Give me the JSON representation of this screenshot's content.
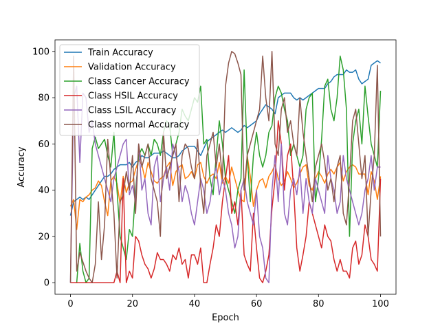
{
  "chart_data": {
    "type": "line",
    "title": "",
    "xlabel": "Epoch",
    "ylabel": "Accuracy",
    "xlim": [
      -5,
      105
    ],
    "ylim": [
      -5,
      105
    ],
    "xticks": [
      0,
      20,
      40,
      60,
      80,
      100
    ],
    "yticks": [
      0,
      20,
      40,
      60,
      80,
      100
    ],
    "grid": false,
    "legend_position": "upper-left",
    "x": [
      0,
      1,
      2,
      3,
      4,
      5,
      6,
      7,
      8,
      9,
      10,
      11,
      12,
      13,
      14,
      15,
      16,
      17,
      18,
      19,
      20,
      21,
      22,
      23,
      24,
      25,
      26,
      27,
      28,
      29,
      30,
      31,
      32,
      33,
      34,
      35,
      36,
      37,
      38,
      39,
      40,
      41,
      42,
      43,
      44,
      45,
      46,
      47,
      48,
      49,
      50,
      51,
      52,
      53,
      54,
      55,
      56,
      57,
      58,
      59,
      60,
      61,
      62,
      63,
      64,
      65,
      66,
      67,
      68,
      69,
      70,
      71,
      72,
      73,
      74,
      75,
      76,
      77,
      78,
      79,
      80,
      81,
      82,
      83,
      84,
      85,
      86,
      87,
      88,
      89,
      90,
      91,
      92,
      93,
      94,
      95,
      96,
      97,
      98,
      99,
      100
    ],
    "series": [
      {
        "name": "Train Accuracy",
        "color": "#1f77b4",
        "values": [
          29,
          35,
          36,
          37,
          36,
          37,
          36,
          38,
          40,
          42,
          44,
          46,
          46,
          47,
          49,
          50,
          51,
          51,
          51,
          52,
          50,
          52,
          53,
          55,
          54,
          54,
          55,
          56,
          56,
          56,
          57,
          56,
          55,
          54,
          54,
          55,
          57,
          58,
          59,
          59,
          59,
          57,
          55,
          58,
          61,
          62,
          63,
          64,
          65,
          66,
          65,
          66,
          67,
          66,
          65,
          66,
          68,
          67,
          68,
          69,
          70,
          73,
          75,
          77,
          76,
          75,
          73,
          80,
          81,
          82,
          82,
          82,
          80,
          79,
          80,
          79,
          80,
          81,
          82,
          83,
          84,
          84,
          84,
          86,
          87,
          89,
          90,
          90,
          90,
          92,
          91,
          91,
          92,
          88,
          86,
          87,
          88,
          94,
          95,
          96,
          95
        ]
      },
      {
        "name": "Validation Accuracy",
        "color": "#ff7f0e",
        "values": [
          33,
          36,
          23,
          36,
          35,
          37,
          38,
          40,
          41,
          44,
          42,
          35,
          29,
          44,
          46,
          43,
          34,
          46,
          39,
          43,
          44,
          49,
          53,
          51,
          45,
          52,
          48,
          44,
          43,
          45,
          46,
          50,
          52,
          42,
          48,
          50,
          51,
          45,
          46,
          48,
          45,
          51,
          52,
          46,
          43,
          46,
          47,
          45,
          52,
          43,
          46,
          43,
          50,
          45,
          40,
          36,
          35,
          55,
          46,
          33,
          40,
          44,
          45,
          41,
          46,
          48,
          51,
          45,
          42,
          44,
          48,
          45,
          41,
          43,
          47,
          50,
          51,
          42,
          40,
          45,
          48,
          46,
          43,
          47,
          49,
          47,
          50,
          52,
          44,
          48,
          50,
          51,
          50,
          47,
          47,
          47,
          38,
          48,
          44,
          36,
          46
        ]
      },
      {
        "name": "Class Cancer Accuracy",
        "color": "#2ca02c",
        "values": [
          0,
          0,
          0,
          17,
          5,
          0,
          2,
          58,
          63,
          58,
          60,
          62,
          55,
          50,
          65,
          40,
          20,
          15,
          10,
          23,
          20,
          40,
          55,
          58,
          55,
          60,
          55,
          62,
          60,
          55,
          65,
          70,
          68,
          55,
          60,
          65,
          75,
          72,
          70,
          75,
          80,
          78,
          85,
          60,
          62,
          45,
          38,
          55,
          70,
          60,
          45,
          40,
          35,
          30,
          40,
          45,
          92,
          55,
          35,
          55,
          65,
          55,
          50,
          55,
          65,
          68,
          80,
          85,
          82,
          75,
          70,
          55,
          60,
          55,
          50,
          55,
          75,
          80,
          82,
          35,
          45,
          62,
          85,
          88,
          75,
          70,
          80,
          98,
          92,
          75,
          20,
          60,
          70,
          75,
          60,
          85,
          72,
          60,
          55,
          50,
          83
        ]
      },
      {
        "name": "Class HSIL Accuracy",
        "color": "#d62728",
        "values": [
          0,
          0,
          0,
          0,
          0,
          0,
          0,
          0,
          0,
          0,
          0,
          0,
          0,
          0,
          0,
          5,
          0,
          45,
          0,
          5,
          2,
          20,
          18,
          12,
          8,
          6,
          2,
          6,
          13,
          10,
          10,
          8,
          5,
          12,
          10,
          15,
          8,
          10,
          2,
          12,
          12,
          8,
          15,
          0,
          0,
          8,
          15,
          25,
          20,
          35,
          45,
          55,
          30,
          35,
          25,
          40,
          12,
          8,
          5,
          30,
          15,
          2,
          0,
          5,
          12,
          32,
          45,
          70,
          60,
          40,
          55,
          60,
          40,
          15,
          5,
          12,
          20,
          35,
          30,
          25,
          20,
          15,
          25,
          20,
          18,
          10,
          5,
          10,
          5,
          5,
          2,
          15,
          18,
          8,
          12,
          25,
          20,
          10,
          8,
          5,
          45
        ]
      },
      {
        "name": "Class LSIL Accuracy",
        "color": "#9467bd",
        "values": [
          0,
          80,
          85,
          52,
          82,
          80,
          65,
          70,
          60,
          55,
          50,
          45,
          40,
          35,
          45,
          50,
          55,
          60,
          62,
          38,
          42,
          35,
          60,
          40,
          45,
          30,
          25,
          50,
          55,
          35,
          45,
          50,
          40,
          60,
          55,
          48,
          35,
          42,
          38,
          30,
          25,
          35,
          45,
          40,
          30,
          35,
          45,
          50,
          38,
          45,
          40,
          30,
          25,
          15,
          20,
          40,
          45,
          35,
          30,
          25,
          40,
          20,
          15,
          2,
          0,
          40,
          55,
          35,
          60,
          30,
          25,
          40,
          45,
          38,
          50,
          30,
          45,
          35,
          30,
          45,
          40,
          35,
          30,
          55,
          45,
          40,
          30,
          35,
          55,
          45,
          40,
          35,
          30,
          25,
          30,
          40,
          45,
          55,
          40,
          50,
          50
        ]
      },
      {
        "name": "Class normal Accuracy",
        "color": "#8c564b",
        "values": [
          0,
          98,
          5,
          13,
          9,
          5,
          2,
          0,
          8,
          35,
          10,
          25,
          62,
          45,
          30,
          2,
          35,
          38,
          48,
          40,
          55,
          30,
          60,
          50,
          55,
          60,
          45,
          40,
          35,
          20,
          65,
          45,
          50,
          55,
          60,
          35,
          55,
          60,
          58,
          50,
          45,
          62,
          42,
          30,
          55,
          60,
          65,
          50,
          60,
          45,
          85,
          95,
          100,
          99,
          95,
          90,
          40,
          55,
          60,
          65,
          70,
          75,
          98,
          80,
          70,
          100,
          60,
          55,
          75,
          80,
          65,
          70,
          60,
          55,
          80,
          65,
          55,
          45,
          35,
          50,
          55,
          60,
          52,
          40,
          45,
          35,
          50,
          55,
          30,
          25,
          45,
          70,
          75,
          60,
          45,
          55,
          20,
          40,
          55,
          94,
          20
        ]
      }
    ]
  }
}
